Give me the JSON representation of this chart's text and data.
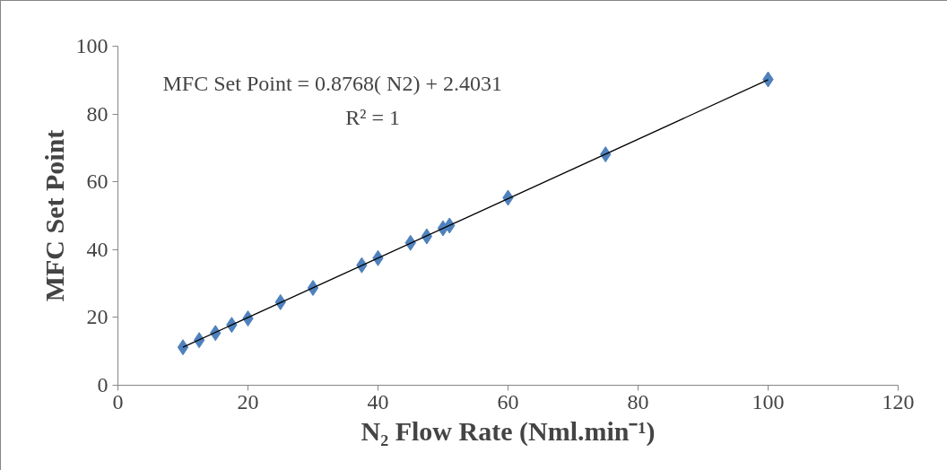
{
  "chart_data": {
    "type": "scatter",
    "xlabel": "N₂ Flow Rate (Nml.min⁻¹)",
    "ylabel": "MFC Set Point",
    "xlim": [
      0,
      120
    ],
    "xticks": [
      0,
      20,
      40,
      60,
      80,
      100,
      120
    ],
    "ylim": [
      0,
      100
    ],
    "yticks": [
      0,
      20,
      40,
      60,
      80,
      100
    ],
    "grid": false,
    "series": [
      {
        "marker": "diamond",
        "color": "#4f81bd",
        "x": [
          10,
          12.5,
          15,
          17.5,
          20,
          25,
          30,
          37.5,
          40,
          45,
          47.5,
          50,
          51,
          60,
          75,
          100
        ],
        "values": [
          11.2,
          13.3,
          15.4,
          17.8,
          19.7,
          24.5,
          28.7,
          35.4,
          37.5,
          42.0,
          43.9,
          46.3,
          47.1,
          55.3,
          68.1,
          90.2
        ]
      },
      {
        "type": "line",
        "color": "#000000",
        "line_style": "solid",
        "x": [
          10,
          100
        ],
        "values": [
          11.2,
          90.1
        ]
      }
    ],
    "annotations": [
      "MFC Set Point = 0.8768( N2) + 2.4031",
      "R² = 1"
    ]
  }
}
